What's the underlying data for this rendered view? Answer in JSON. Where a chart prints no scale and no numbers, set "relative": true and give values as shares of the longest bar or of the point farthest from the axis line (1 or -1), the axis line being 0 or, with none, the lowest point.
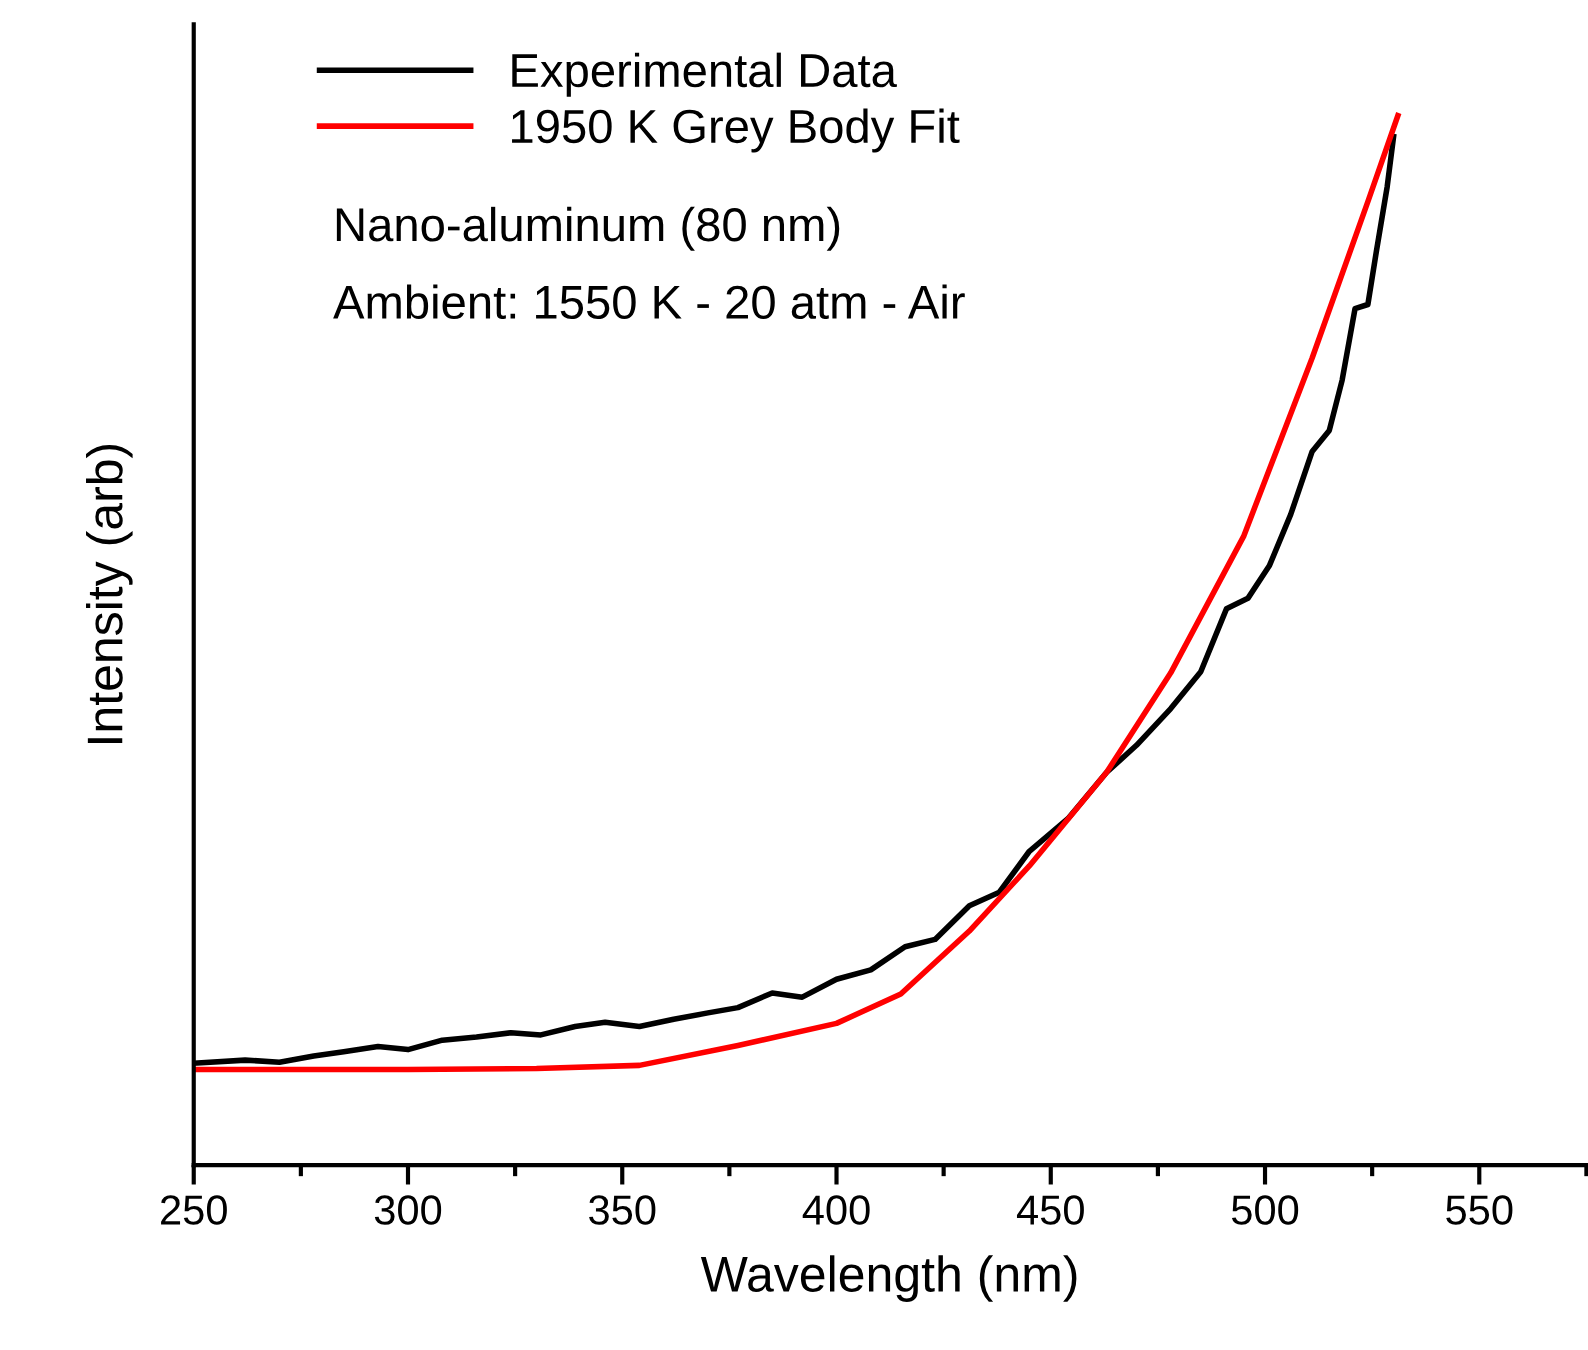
{
  "chart_data": {
    "type": "line",
    "relative": true,
    "xlabel": "Wavelength (nm)",
    "ylabel": "Intensity (arb)",
    "xlim": [
      250,
      575
    ],
    "xticks": [
      250,
      300,
      350,
      400,
      450,
      500,
      550
    ],
    "legend": "top left",
    "grid": false,
    "series": [
      {
        "name": "Experimental Data",
        "color": "#000000",
        "x": [
          250,
          262,
          270,
          278,
          285,
          293,
          300,
          308,
          316,
          324,
          331,
          339,
          346,
          354,
          362,
          370,
          377,
          385,
          392,
          400,
          408,
          416,
          423,
          431,
          438,
          445,
          454,
          463,
          470,
          478,
          485,
          491,
          496,
          501,
          506,
          511,
          515,
          518,
          521,
          524,
          526,
          528.5,
          530
        ],
        "values": [
          0.097,
          0.1,
          0.098,
          0.104,
          0.108,
          0.113,
          0.11,
          0.119,
          0.122,
          0.126,
          0.124,
          0.132,
          0.136,
          0.132,
          0.139,
          0.145,
          0.15,
          0.164,
          0.16,
          0.177,
          0.186,
          0.208,
          0.215,
          0.247,
          0.26,
          0.299,
          0.33,
          0.374,
          0.4,
          0.435,
          0.47,
          0.53,
          0.54,
          0.571,
          0.62,
          0.68,
          0.7,
          0.748,
          0.816,
          0.82,
          0.871,
          0.932,
          0.98
        ]
      },
      {
        "name": "1950 K Grey Body Fit",
        "color": "#ff0000",
        "x": [
          250,
          300,
          330,
          354,
          377,
          400,
          415,
          431,
          445,
          463,
          478,
          495,
          511,
          524,
          531
        ],
        "values": [
          0.091,
          0.091,
          0.092,
          0.095,
          0.114,
          0.135,
          0.163,
          0.223,
          0.285,
          0.374,
          0.469,
          0.599,
          0.769,
          0.918,
          1.0
        ]
      }
    ],
    "annotations": [
      "Nano-aluminum (80 nm)",
      "Ambient: 1550 K - 20 atm - Air"
    ]
  }
}
